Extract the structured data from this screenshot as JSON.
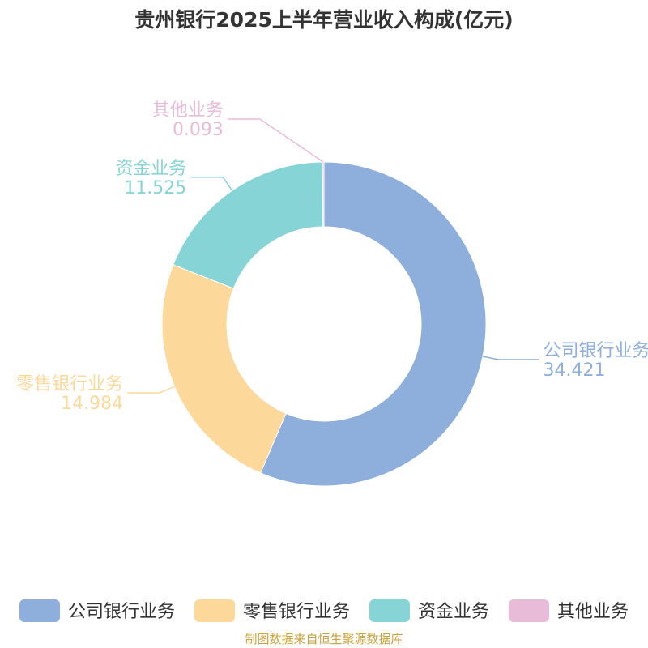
{
  "chart_data": {
    "type": "pie",
    "title": "贵州银行2025上半年营业收入构成(亿元)",
    "style": "donut",
    "categories": [
      "公司银行业务",
      "零售银行业务",
      "资金业务",
      "其他业务"
    ],
    "values": [
      34.421,
      14.984,
      11.525,
      0.093
    ],
    "value_labels": [
      "34.421",
      "14.984",
      "11.525",
      "0.093"
    ],
    "colors": [
      "#8eaedb",
      "#fdd89b",
      "#86d4d6",
      "#e8bcd9"
    ],
    "legend_position": "bottom"
  },
  "source": {
    "text": "制图数据来自恒生聚源数据库",
    "color": "#c9a23a"
  }
}
